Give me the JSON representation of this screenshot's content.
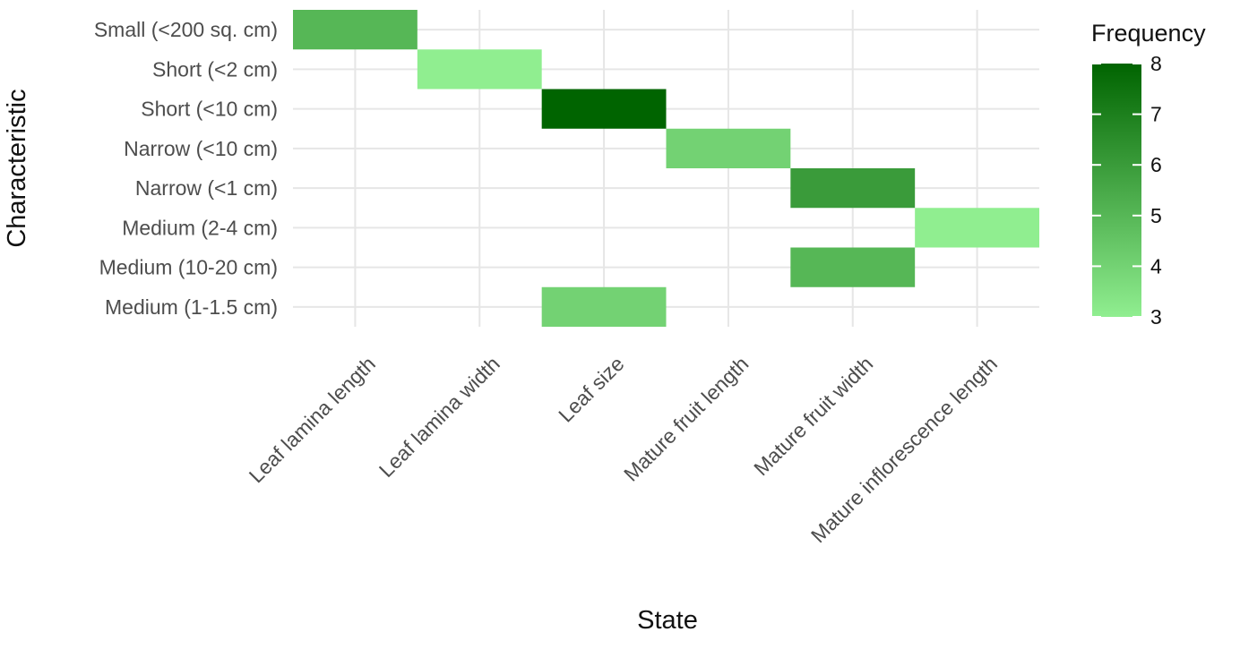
{
  "chart_data": {
    "type": "heatmap",
    "xlabel": "State",
    "ylabel": "Characteristic",
    "x_categories": [
      "Leaf lamina length",
      "Leaf lamina width",
      "Leaf size",
      "Mature fruit length",
      "Mature fruit width",
      "Mature inflorescence length"
    ],
    "y_categories": [
      "Small (<200 sq. cm)",
      "Short (<2 cm)",
      "Short (<10 cm)",
      "Narrow (<10 cm)",
      "Narrow (<1 cm)",
      "Medium (2-4 cm)",
      "Medium (10-20 cm)",
      "Medium (1-1.5 cm)"
    ],
    "cells": [
      {
        "x": "Leaf lamina length",
        "y": "Small (<200 sq. cm)",
        "value": 5
      },
      {
        "x": "Leaf lamina width",
        "y": "Short (<2 cm)",
        "value": 3
      },
      {
        "x": "Leaf size",
        "y": "Short (<10 cm)",
        "value": 8
      },
      {
        "x": "Mature fruit length",
        "y": "Narrow (<10 cm)",
        "value": 4
      },
      {
        "x": "Mature fruit width",
        "y": "Narrow (<1 cm)",
        "value": 6
      },
      {
        "x": "Mature inflorescence length",
        "y": "Medium (2-4 cm)",
        "value": 3
      },
      {
        "x": "Mature fruit width",
        "y": "Medium (10-20 cm)",
        "value": 5
      },
      {
        "x": "Leaf size",
        "y": "Medium (1-1.5 cm)",
        "value": 4
      }
    ],
    "legend": {
      "title": "Frequency",
      "min": 3,
      "max": 8,
      "ticks": [
        3,
        4,
        5,
        6,
        7,
        8
      ],
      "color_low": "#90ee90",
      "color_high": "#006400",
      "placement": "right"
    },
    "grid": true
  }
}
